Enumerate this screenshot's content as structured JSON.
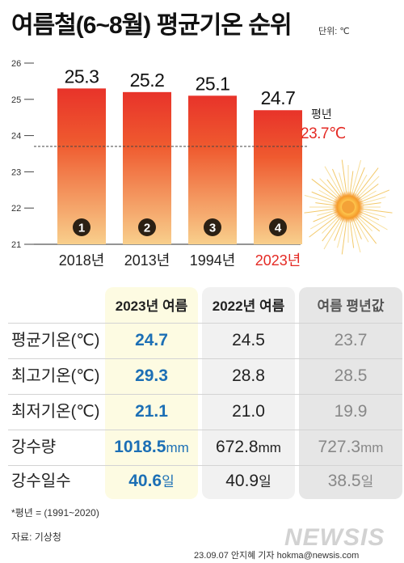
{
  "header": {
    "title": "여름철(6~8월) 평균기온 순위",
    "unit_note": "단위: ℃"
  },
  "chart_data": {
    "type": "bar",
    "categories": [
      "2018년",
      "2013년",
      "1994년",
      "2023년"
    ],
    "values": [
      25.3,
      25.2,
      25.1,
      24.7
    ],
    "value_labels": [
      "25.3",
      "25.2",
      "25.1",
      "24.7"
    ],
    "ranks": [
      "1",
      "2",
      "3",
      "4"
    ],
    "highlight_index": 3,
    "ylim": [
      21,
      26
    ],
    "yticks": [
      "21",
      "22",
      "23",
      "24",
      "25",
      "26"
    ],
    "reference_line": {
      "value": 23.7,
      "label": "평년",
      "value_label": "23.7℃"
    },
    "colors": {
      "bar_top": "#e8332a",
      "bar_bottom": "#f8cf8c",
      "highlight_text": "#e42a24",
      "rank_badge": "#2b2014"
    }
  },
  "table": {
    "headers": [
      "2023년 여름",
      "2022년 여름",
      "여름 평년값"
    ],
    "rows": [
      {
        "label": "평균기온(℃)",
        "values": [
          "24.7",
          "24.5",
          "23.7"
        ],
        "unit": ""
      },
      {
        "label": "최고기온(℃)",
        "values": [
          "29.3",
          "28.8",
          "28.5"
        ],
        "unit": ""
      },
      {
        "label": "최저기온(℃)",
        "values": [
          "21.1",
          "21.0",
          "19.9"
        ],
        "unit": ""
      },
      {
        "label": "강수량",
        "values": [
          "1018.5",
          "672.8",
          "727.3"
        ],
        "unit": "mm"
      },
      {
        "label": "강수일수",
        "values": [
          "40.6",
          "40.9",
          "38.5"
        ],
        "unit": "일"
      }
    ],
    "colors": {
      "highlight": "#1c6fb5",
      "muted": "#888888"
    }
  },
  "footer": {
    "note": "*평년 = (1991~2020)",
    "source": "자료: 기상청",
    "credit": "23.09.07 안지혜 기자 hokma@newsis.com",
    "logo": "NEWSIS"
  }
}
